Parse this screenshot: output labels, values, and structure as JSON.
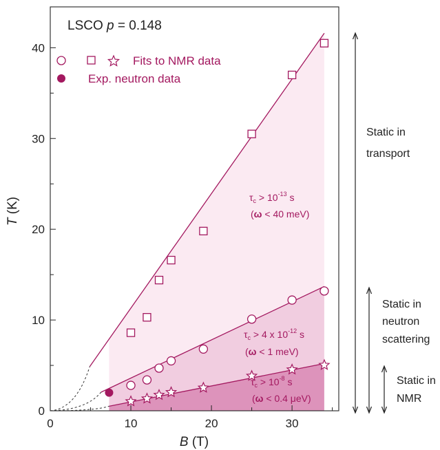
{
  "chart_data": {
    "type": "scatter",
    "title_parts": [
      "LSCO ",
      "p",
      " = 0.148"
    ],
    "xlabel_italic": "B",
    "xlabel_unit": " (T)",
    "ylabel_italic": "T",
    "ylabel_unit": " (K)",
    "xlim": [
      0,
      35.8
    ],
    "ylim": [
      0,
      44.5
    ],
    "x_ticks": [
      0,
      10,
      20,
      30
    ],
    "y_ticks": [
      0,
      10,
      20,
      30,
      40
    ],
    "legend": {
      "nmr_label": "Fits to NMR data",
      "neutron_label": "Exp. neutron data"
    },
    "colors": {
      "series": "#a3185f",
      "band_top": "#fbeaf2",
      "band_mid": "#f1cde0",
      "band_low": "#dd93bb",
      "axis": "#222222"
    },
    "series": [
      {
        "marker": "square",
        "x": [
          10,
          12,
          13.5,
          15,
          19,
          25,
          30,
          34
        ],
        "y": [
          8.6,
          10.3,
          14.4,
          16.6,
          19.8,
          30.5,
          37.0,
          40.5
        ],
        "fit": [
          [
            5.0,
            5.0
          ],
          [
            34,
            41.6
          ]
        ]
      },
      {
        "marker": "circle",
        "x": [
          10,
          12,
          13.5,
          15,
          19,
          25,
          30,
          34
        ],
        "y": [
          2.8,
          3.4,
          4.7,
          5.5,
          6.8,
          10.1,
          12.2,
          13.2
        ],
        "fit": [
          [
            5.0,
            1.5
          ],
          [
            34,
            13.7
          ]
        ]
      },
      {
        "marker": "star",
        "x": [
          10,
          12,
          13.5,
          15,
          19,
          25,
          30,
          34
        ],
        "y": [
          1.1,
          1.4,
          1.8,
          2.1,
          2.6,
          3.9,
          4.6,
          5.1
        ],
        "fit": [
          [
            7.3,
            0.5
          ],
          [
            34,
            5.2
          ]
        ]
      },
      {
        "marker": "filled-circle",
        "x": [
          7.3
        ],
        "y": [
          2.0
        ]
      }
    ],
    "annotations": [
      {
        "base": "τ",
        "sub": "c",
        "mid": " > 10",
        "sup": "-13",
        "tail": " s"
      },
      {
        "base": "τ",
        "sub": "c",
        "mid": " > 4 x 10",
        "sup": "-12",
        "tail": " s"
      },
      {
        "base": "τ",
        "sub": "c",
        "mid": " > 10",
        "sup": "-8",
        "tail": " s"
      }
    ],
    "annotations_line2": [
      {
        "omega": "ω",
        "rest": " < 40 meV"
      },
      {
        "omega": "ω",
        "rest": " < 1 meV"
      },
      {
        "omega": "ω",
        "rest": " < 0.4 μeV"
      }
    ],
    "regions": [
      {
        "lines": [
          "Static in",
          "transport"
        ]
      },
      {
        "lines": [
          "Static in",
          "neutron",
          "scattering"
        ]
      },
      {
        "lines": [
          "Static in",
          "NMR"
        ]
      }
    ]
  }
}
